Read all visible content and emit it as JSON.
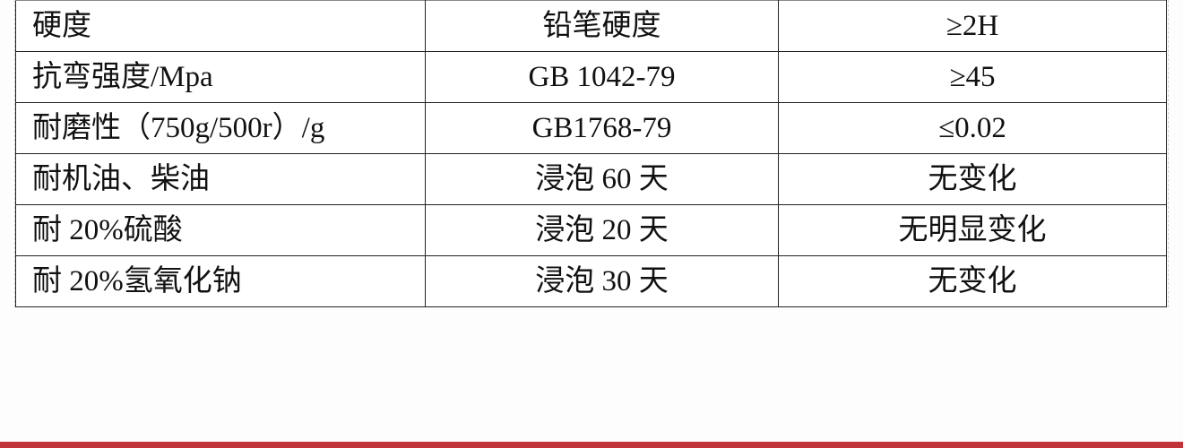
{
  "table": {
    "rows": [
      [
        "硬度",
        "铅笔硬度",
        "≥2H"
      ],
      [
        "抗弯强度/Mpa",
        "GB 1042-79",
        "≥45"
      ],
      [
        "耐磨性（750g/500r）/g",
        "GB1768-79",
        "≤0.02"
      ],
      [
        "耐机油、柴油",
        "浸泡 60 天",
        "无变化"
      ],
      [
        "耐 20%硫酸",
        "浸泡 20 天",
        "无明显变化"
      ],
      [
        "耐 20%氢氧化钠",
        "浸泡 30 天",
        "无变化"
      ]
    ]
  },
  "colors": {
    "footer_bar": "#c0333a"
  }
}
